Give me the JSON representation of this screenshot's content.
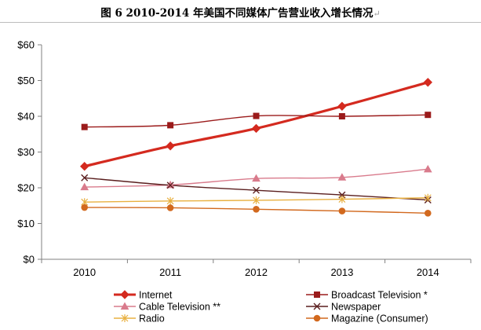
{
  "title": "图 6 2010-2014 年美国不同媒体广告营业收入增长情况",
  "title_mark": "↵",
  "chart_data": {
    "type": "line",
    "x": [
      "2010",
      "2011",
      "2012",
      "2013",
      "2014"
    ],
    "ylim": [
      0,
      60
    ],
    "yticks": [
      0,
      10,
      20,
      30,
      40,
      50,
      60
    ],
    "ytick_labels": [
      "$0",
      "$10",
      "$20",
      "$30",
      "$40",
      "$50",
      "$60"
    ],
    "grid": false,
    "legend_placement": "bottom",
    "series": [
      {
        "name": "Internet",
        "values": [
          26.0,
          31.7,
          36.6,
          42.8,
          49.5
        ],
        "color": "#d42a1f",
        "marker": "diamond",
        "bold": true
      },
      {
        "name": "Broadcast Television *",
        "values": [
          37.0,
          37.5,
          40.1,
          40.0,
          40.4
        ],
        "color": "#9b1b1b",
        "marker": "square"
      },
      {
        "name": "Cable Television **",
        "values": [
          20.2,
          20.8,
          22.6,
          22.9,
          25.2
        ],
        "color": "#d97b8c",
        "marker": "triangle"
      },
      {
        "name": "Newspaper",
        "values": [
          22.8,
          20.7,
          19.3,
          18.0,
          16.6
        ],
        "color": "#5a1e1e",
        "marker": "x"
      },
      {
        "name": "Radio",
        "values": [
          16.0,
          16.3,
          16.5,
          16.8,
          17.2
        ],
        "color": "#e8b040",
        "marker": "star"
      },
      {
        "name": "Magazine (Consumer)",
        "values": [
          14.5,
          14.4,
          14.0,
          13.5,
          12.9
        ],
        "color": "#d2691e",
        "marker": "circle"
      }
    ]
  }
}
